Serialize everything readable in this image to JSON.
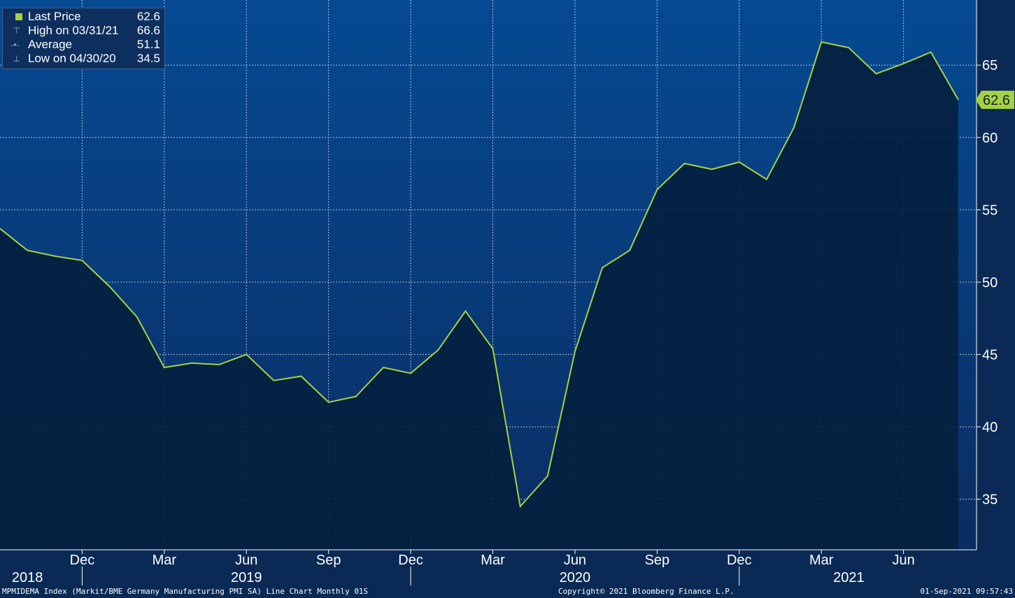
{
  "legend": {
    "items": [
      {
        "label": "Last Price",
        "value": "62.6"
      },
      {
        "label": "High on 03/31/21",
        "value": "66.6"
      },
      {
        "label": "Average",
        "value": "51.1"
      },
      {
        "label": "Low on 04/30/20",
        "value": "34.5"
      }
    ]
  },
  "footer": {
    "left": "MPMIDEMA Index (Markit/BME Germany Manufacturing PMI SA) Line Chart  Monthly 01S",
    "center": "Copyright© 2021 Bloomberg Finance L.P.",
    "right": "01-Sep-2021 09:57:43"
  },
  "colors": {
    "background": "#0a2a55",
    "plot_gradient_top": "#064a92",
    "plot_gradient_bottom": "#0a2d62",
    "area_fill": "#04213f",
    "line": "#a7d13f",
    "last_price_tag": "#a7d13f",
    "axis_text": "#ffffff"
  },
  "chart_data": {
    "type": "area",
    "x": [
      "2018-09",
      "2018-10",
      "2018-11",
      "2018-12",
      "2019-01",
      "2019-02",
      "2019-03",
      "2019-04",
      "2019-05",
      "2019-06",
      "2019-07",
      "2019-08",
      "2019-09",
      "2019-10",
      "2019-11",
      "2019-12",
      "2020-01",
      "2020-02",
      "2020-03",
      "2020-04",
      "2020-05",
      "2020-06",
      "2020-07",
      "2020-08",
      "2020-09",
      "2020-10",
      "2020-11",
      "2020-12",
      "2021-01",
      "2021-02",
      "2021-03",
      "2021-04",
      "2021-05",
      "2021-06",
      "2021-07",
      "2021-08"
    ],
    "series": [
      {
        "values": [
          53.7,
          52.2,
          51.8,
          51.5,
          49.7,
          47.6,
          44.1,
          44.4,
          44.3,
          45.0,
          43.2,
          43.5,
          41.7,
          42.1,
          44.1,
          43.7,
          45.3,
          48.0,
          45.4,
          34.5,
          36.6,
          45.2,
          51.0,
          52.2,
          56.4,
          58.2,
          57.8,
          58.3,
          57.1,
          60.7,
          66.6,
          66.2,
          64.4,
          65.1,
          65.9,
          62.6
        ]
      }
    ],
    "last_value_label": "62.6",
    "ylim": [
      31.5,
      69.5
    ],
    "yticks": [
      35,
      40,
      45,
      50,
      55,
      60,
      65
    ],
    "ytick_labels": [
      "35",
      "40",
      "45",
      "50",
      "55",
      "60",
      "65"
    ],
    "xticks": [
      {
        "month": "2018-12",
        "label": "Dec"
      },
      {
        "month": "2019-03",
        "label": "Mar"
      },
      {
        "month": "2019-06",
        "label": "Jun"
      },
      {
        "month": "2019-09",
        "label": "Sep"
      },
      {
        "month": "2019-12",
        "label": "Dec"
      },
      {
        "month": "2020-03",
        "label": "Mar"
      },
      {
        "month": "2020-06",
        "label": "Jun"
      },
      {
        "month": "2020-09",
        "label": "Sep"
      },
      {
        "month": "2020-12",
        "label": "Dec"
      },
      {
        "month": "2021-03",
        "label": "Mar"
      },
      {
        "month": "2021-06",
        "label": "Jun"
      }
    ],
    "year_labels": [
      {
        "month": "2018-10",
        "label": "2018"
      },
      {
        "month": "2019-06",
        "label": "2019"
      },
      {
        "month": "2020-06",
        "label": "2020"
      },
      {
        "month": "2021-04",
        "label": "2021"
      }
    ],
    "year_separators": [
      "2018-12",
      "2019-12",
      "2020-12"
    ],
    "grid": true,
    "legend_position": "top-left"
  }
}
